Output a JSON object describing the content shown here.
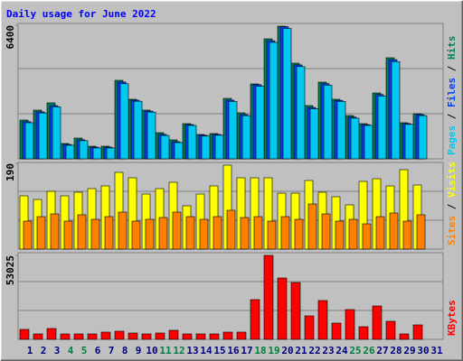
{
  "title": "Daily usage for June 2022",
  "legend_separator": "/",
  "chart_data": [
    {
      "type": "bar",
      "ylim": [
        0,
        6400
      ],
      "yticks": [
        6400
      ],
      "grid": true,
      "series": [
        {
          "name": "Hits",
          "color": "#00805c",
          "values": [
            1859,
            2335,
            2681,
            735,
            995,
            605,
            605,
            3762,
            2854,
            2335,
            1254,
            908,
            1686,
            1167,
            1211,
            2897,
            2205,
            3589,
            5751,
            6356,
            4583,
            2551,
            3675,
            2854,
            2076,
            1686,
            3157,
            4843,
            1730,
            2162,
            0
          ]
        },
        {
          "name": "Files",
          "color": "#0040ff",
          "values": [
            1780,
            2250,
            2550,
            690,
            910,
            560,
            560,
            3680,
            2810,
            2290,
            1170,
            820,
            1640,
            1130,
            1170,
            2810,
            2120,
            3550,
            5660,
            6330,
            4500,
            2460,
            3600,
            2800,
            2000,
            1640,
            3080,
            4750,
            1690,
            2120,
            0
          ]
        },
        {
          "name": "Pages",
          "color": "#00c8f0",
          "values": [
            1730,
            2200,
            2490,
            650,
            870,
            520,
            520,
            3600,
            2760,
            2240,
            1120,
            780,
            1600,
            1090,
            1130,
            2750,
            2070,
            3480,
            5580,
            6250,
            4420,
            2400,
            3530,
            2750,
            1950,
            1600,
            3010,
            4660,
            1650,
            2070,
            0
          ]
        }
      ]
    },
    {
      "type": "bar",
      "ylim": [
        0,
        190
      ],
      "yticks": [
        190
      ],
      "grid": true,
      "series": [
        {
          "name": "Visits",
          "color": "#ffff00",
          "values": [
            118,
            110,
            128,
            118,
            126,
            134,
            140,
            170,
            158,
            122,
            134,
            148,
            96,
            122,
            140,
            186,
            158,
            158,
            158,
            124,
            124,
            152,
            126,
            116,
            98,
            150,
            156,
            140,
            176,
            142,
            0
          ]
        },
        {
          "name": "Sites",
          "color": "#ff8000",
          "values": [
            62,
            72,
            78,
            62,
            76,
            66,
            72,
            82,
            62,
            66,
            70,
            82,
            72,
            66,
            72,
            86,
            70,
            72,
            62,
            72,
            66,
            100,
            78,
            62,
            66,
            56,
            72,
            80,
            62,
            76,
            0
          ]
        }
      ]
    },
    {
      "type": "bar",
      "ylim": [
        0,
        53025
      ],
      "yticks": [
        53025
      ],
      "grid": true,
      "categories": [
        "1",
        "2",
        "3",
        "4",
        "5",
        "6",
        "7",
        "8",
        "9",
        "10",
        "11",
        "12",
        "13",
        "14",
        "15",
        "16",
        "17",
        "18",
        "19",
        "20",
        "21",
        "22",
        "23",
        "24",
        "25",
        "26",
        "27",
        "28",
        "29",
        "30",
        "31"
      ],
      "x_label_colors": [
        "#000080",
        "#000080",
        "#000080",
        "#008040",
        "#008040",
        "#000080",
        "#000080",
        "#000080",
        "#000080",
        "#000080",
        "#008040",
        "#008040",
        "#000080",
        "#000080",
        "#000080",
        "#000080",
        "#000080",
        "#008040",
        "#008040",
        "#000080",
        "#000080",
        "#000080",
        "#000080",
        "#000080",
        "#008040",
        "#008040",
        "#000080",
        "#000080",
        "#000080",
        "#000080",
        "#000080"
      ],
      "series": [
        {
          "name": "KBytes",
          "color": "#ff0000",
          "values": [
            6270,
            3420,
            6840,
            3420,
            3420,
            3420,
            4560,
            5130,
            3990,
            3420,
            3990,
            5700,
            3420,
            3420,
            3420,
            4560,
            4560,
            25080,
            53025,
            38760,
            35910,
            14820,
            24510,
            10260,
            18810,
            7980,
            21090,
            11400,
            3420,
            9120,
            0
          ]
        }
      ]
    }
  ]
}
